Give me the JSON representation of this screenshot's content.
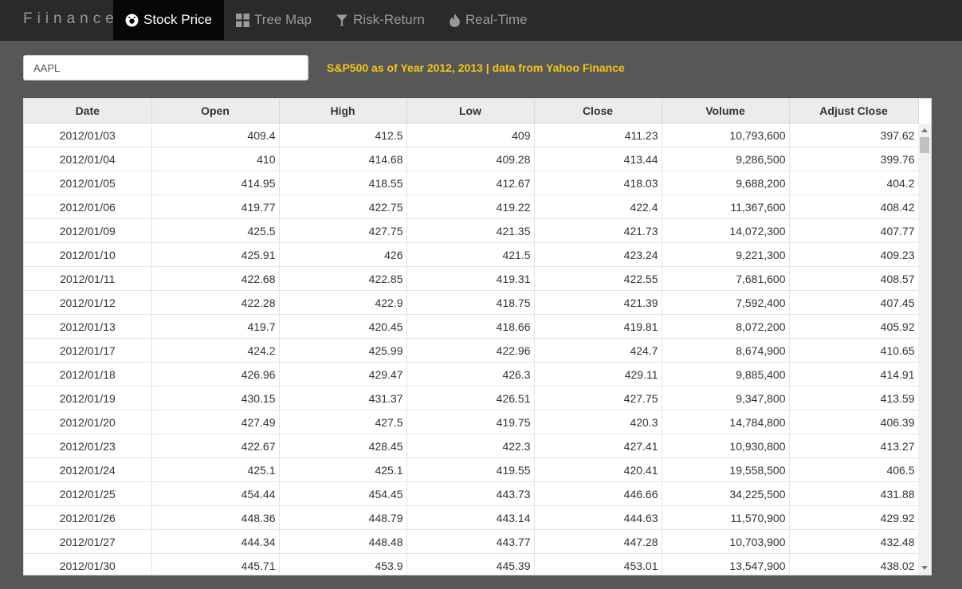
{
  "app": {
    "brand": "Fiinance",
    "nav": [
      {
        "label": "Stock Price",
        "icon": "donut-icon",
        "active": true
      },
      {
        "label": "Tree Map",
        "icon": "grid-icon",
        "active": false
      },
      {
        "label": "Risk-Return",
        "icon": "cocktail-icon",
        "active": false
      },
      {
        "label": "Real-Time",
        "icon": "flame-icon",
        "active": false
      }
    ]
  },
  "search": {
    "value": "AAPL"
  },
  "caption": "S&P500 as of Year 2012, 2013 | data from Yahoo Finance",
  "table": {
    "headers": [
      "Date",
      "Open",
      "High",
      "Low",
      "Close",
      "Volume",
      "Adjust Close"
    ],
    "rows": [
      [
        "2012/01/03",
        "409.4",
        "412.5",
        "409",
        "411.23",
        "10,793,600",
        "397.62"
      ],
      [
        "2012/01/04",
        "410",
        "414.68",
        "409.28",
        "413.44",
        "9,286,500",
        "399.76"
      ],
      [
        "2012/01/05",
        "414.95",
        "418.55",
        "412.67",
        "418.03",
        "9,688,200",
        "404.2"
      ],
      [
        "2012/01/06",
        "419.77",
        "422.75",
        "419.22",
        "422.4",
        "11,367,600",
        "408.42"
      ],
      [
        "2012/01/09",
        "425.5",
        "427.75",
        "421.35",
        "421.73",
        "14,072,300",
        "407.77"
      ],
      [
        "2012/01/10",
        "425.91",
        "426",
        "421.5",
        "423.24",
        "9,221,300",
        "409.23"
      ],
      [
        "2012/01/11",
        "422.68",
        "422.85",
        "419.31",
        "422.55",
        "7,681,600",
        "408.57"
      ],
      [
        "2012/01/12",
        "422.28",
        "422.9",
        "418.75",
        "421.39",
        "7,592,400",
        "407.45"
      ],
      [
        "2012/01/13",
        "419.7",
        "420.45",
        "418.66",
        "419.81",
        "8,072,200",
        "405.92"
      ],
      [
        "2012/01/17",
        "424.2",
        "425.99",
        "422.96",
        "424.7",
        "8,674,900",
        "410.65"
      ],
      [
        "2012/01/18",
        "426.96",
        "429.47",
        "426.3",
        "429.11",
        "9,885,400",
        "414.91"
      ],
      [
        "2012/01/19",
        "430.15",
        "431.37",
        "426.51",
        "427.75",
        "9,347,800",
        "413.59"
      ],
      [
        "2012/01/20",
        "427.49",
        "427.5",
        "419.75",
        "420.3",
        "14,784,800",
        "406.39"
      ],
      [
        "2012/01/23",
        "422.67",
        "428.45",
        "422.3",
        "427.41",
        "10,930,800",
        "413.27"
      ],
      [
        "2012/01/24",
        "425.1",
        "425.1",
        "419.55",
        "420.41",
        "19,558,500",
        "406.5"
      ],
      [
        "2012/01/25",
        "454.44",
        "454.45",
        "443.73",
        "446.66",
        "34,225,500",
        "431.88"
      ],
      [
        "2012/01/26",
        "448.36",
        "448.79",
        "443.14",
        "444.63",
        "11,570,900",
        "429.92"
      ],
      [
        "2012/01/27",
        "444.34",
        "448.48",
        "443.77",
        "447.28",
        "10,703,900",
        "432.48"
      ],
      [
        "2012/01/30",
        "445.71",
        "453.9",
        "445.39",
        "453.01",
        "13,547,900",
        "438.02"
      ]
    ]
  }
}
